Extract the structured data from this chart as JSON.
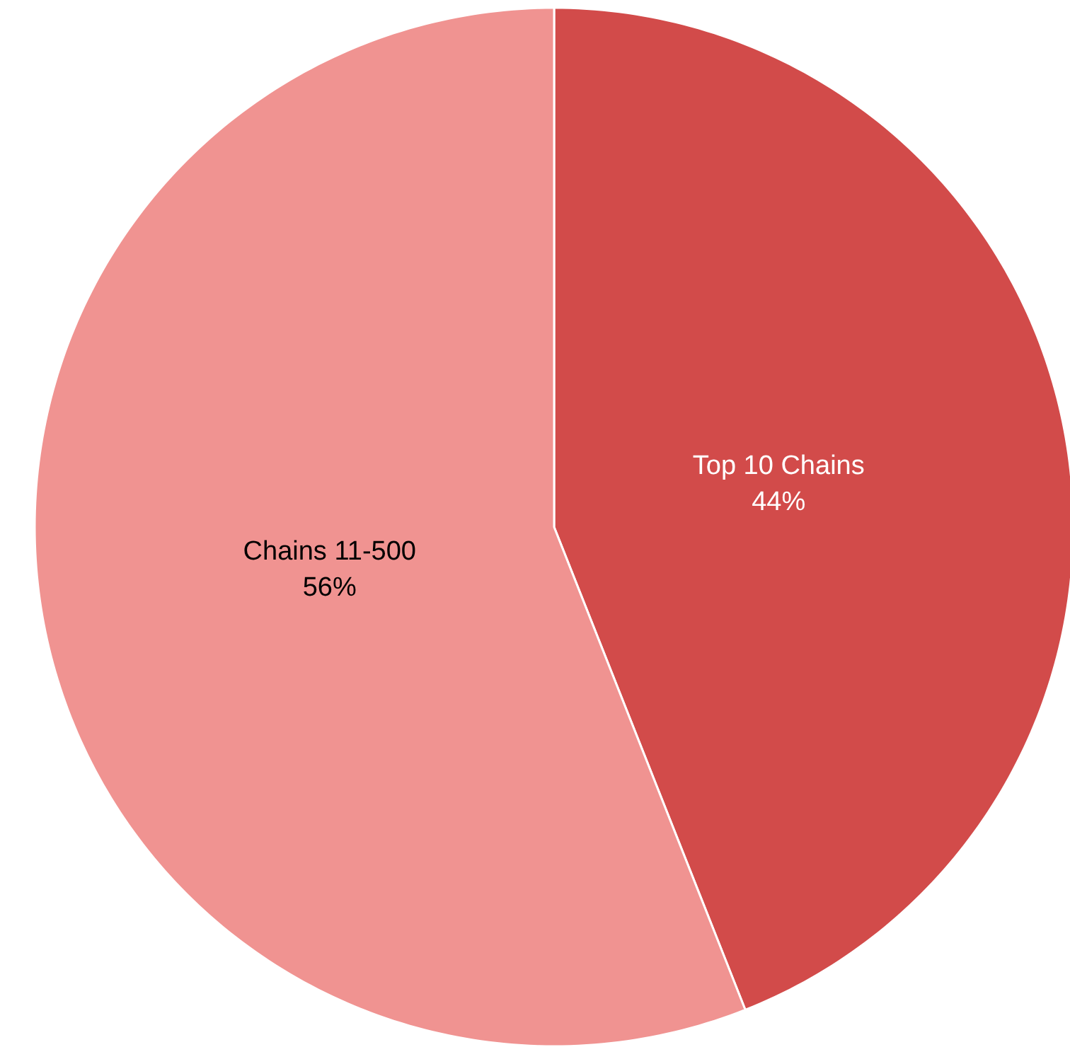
{
  "chart_data": {
    "type": "pie",
    "categories": [
      "Top 10 Chains",
      "Chains 11-500"
    ],
    "values": [
      44,
      56
    ],
    "value_labels": [
      "44%",
      "56%"
    ],
    "colors": [
      "#d24b4a",
      "#f09391"
    ]
  }
}
